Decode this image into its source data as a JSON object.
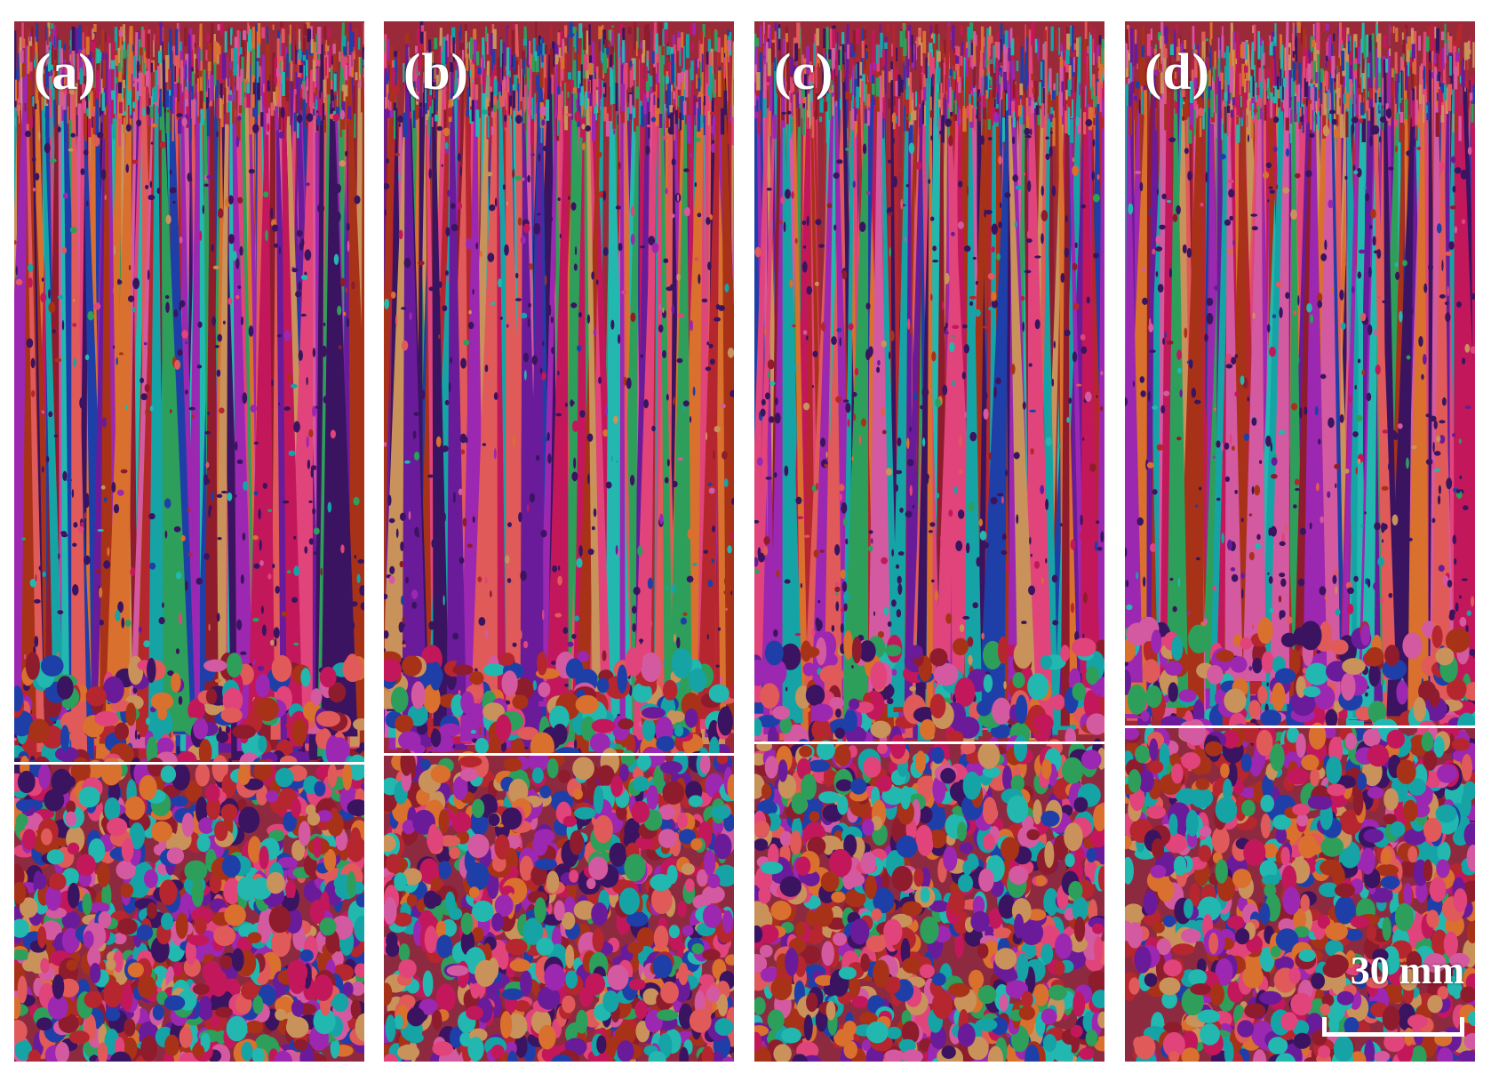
{
  "figure": {
    "panels": [
      {
        "label": "(a)",
        "boundary_fraction": 0.713
      },
      {
        "label": "(b)",
        "boundary_fraction": 0.704
      },
      {
        "label": "(c)",
        "boundary_fraction": 0.693
      },
      {
        "label": "(d)",
        "boundary_fraction": 0.678
      }
    ],
    "scale_bar": {
      "label": "30 mm"
    },
    "palette": [
      "#b5262e",
      "#c2185b",
      "#e0447a",
      "#d35aa0",
      "#9c27b0",
      "#6a1b9a",
      "#3a1460",
      "#1f3fa8",
      "#16a3a6",
      "#22b8b0",
      "#2e9e5b",
      "#d9702e",
      "#c9925a",
      "#a83218",
      "#e05a5a",
      "#8e1c2c"
    ]
  }
}
